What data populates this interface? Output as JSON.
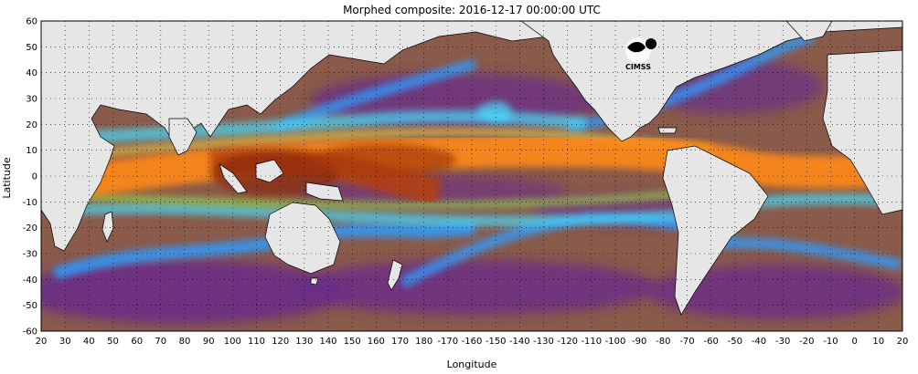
{
  "title": "Morphed composite: 2016-12-17 00:00:00 UTC",
  "map": {
    "xlabel": "Longitude",
    "ylabel": "Latitude",
    "x_ticks": [
      "20",
      "30",
      "40",
      "50",
      "60",
      "70",
      "80",
      "90",
      "100",
      "110",
      "120",
      "130",
      "140",
      "150",
      "160",
      "170",
      "180",
      "-170",
      "-160",
      "-150",
      "-140",
      "-130",
      "-120",
      "-110",
      "-100",
      "-90",
      "-80",
      "-70",
      "-60",
      "-50",
      "-40",
      "-30",
      "-20",
      "-10",
      "0",
      "10",
      "20"
    ],
    "y_ticks": [
      "60",
      "50",
      "40",
      "30",
      "20",
      "10",
      "0",
      "-10",
      "-20",
      "-30",
      "-40",
      "-50",
      "-60"
    ],
    "lon_range": [
      20,
      380
    ],
    "lat_range": [
      -60,
      60
    ],
    "grid": "dotted",
    "colors": {
      "land": "#e6e6e6",
      "background": "#8a5a4a",
      "low_moisture": "#6a2c8a",
      "mid_moisture": "#2f7fff",
      "high_moisture": "#ff8a1a",
      "very_high_moisture": "#8a2a0a"
    }
  },
  "logo": {
    "text": "CIMSS",
    "icon": "cimss-logo-icon"
  }
}
